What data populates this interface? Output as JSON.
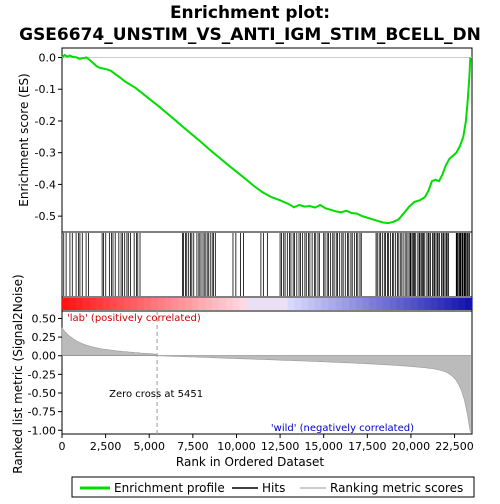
{
  "chart_data": {
    "type": "line",
    "title_line1": "Enrichment plot:",
    "title_line2": "GSE6674_UNSTIM_VS_ANTI_IGM_STIM_BCELL_DN",
    "xlabel": "Rank in Ordered Dataset",
    "ylabel_top": "Enrichment score (ES)",
    "ylabel_bottom": "Ranked list metric (Signal2Noise)",
    "xlim": [
      0,
      23500
    ],
    "x_ticks": [
      0,
      2500,
      5000,
      7500,
      10000,
      12500,
      15000,
      17500,
      20000,
      22500
    ],
    "x_tick_labels": [
      "0",
      "2,500",
      "5,000",
      "7,500",
      "10,000",
      "12,500",
      "15,000",
      "17,500",
      "20,000",
      "22,500"
    ],
    "es_ylim": [
      -0.55,
      0.03
    ],
    "es_ticks": [
      0.0,
      -0.1,
      -0.2,
      -0.3,
      -0.4,
      -0.5
    ],
    "es_tick_labels": [
      "0.0",
      "-0.1",
      "-0.2",
      "-0.3",
      "-0.4",
      "-0.5"
    ],
    "metric_ylim": [
      -1.05,
      0.6
    ],
    "metric_ticks": [
      0.5,
      0.25,
      0.0,
      -0.25,
      -0.5,
      -0.75,
      -1.0
    ],
    "metric_tick_labels": [
      "0.50",
      "0.25",
      "0.00",
      "-0.25",
      "-0.50",
      "-0.75",
      "-1.00"
    ],
    "zero_cross": 5451,
    "zero_cross_label": "Zero cross at 5451",
    "pos_label": "'lab' (positively correlated)",
    "neg_label": "'wild' (negatively correlated)",
    "legend": {
      "placement": "bottom",
      "items": [
        "Enrichment profile",
        "Hits",
        "Ranking metric scores"
      ]
    },
    "series": [
      {
        "name": "Enrichment profile",
        "color": "#00dd00",
        "x": [
          0,
          150,
          300,
          450,
          600,
          800,
          1000,
          1200,
          1400,
          1600,
          1800,
          2000,
          2200,
          2400,
          2600,
          2800,
          3000,
          3300,
          3600,
          3900,
          4200,
          4500,
          5000,
          5500,
          6000,
          6500,
          7000,
          7500,
          8000,
          8500,
          9000,
          9500,
          10000,
          10500,
          11000,
          11500,
          12000,
          12500,
          13000,
          13300,
          13600,
          13900,
          14200,
          14500,
          14800,
          15100,
          15400,
          15700,
          16000,
          16300,
          16600,
          16900,
          17200,
          17500,
          17800,
          18100,
          18400,
          18700,
          19000,
          19300,
          19600,
          19900,
          20200,
          20500,
          20800,
          21000,
          21200,
          21400,
          21600,
          21800,
          22000,
          22200,
          22400,
          22600,
          22800,
          23000,
          23150,
          23250,
          23350,
          23400
        ],
        "y": [
          0.0,
          0.008,
          0.003,
          0.006,
          0.002,
          0.001,
          -0.004,
          -0.002,
          0.0,
          -0.008,
          -0.018,
          -0.028,
          -0.033,
          -0.035,
          -0.038,
          -0.042,
          -0.05,
          -0.062,
          -0.075,
          -0.085,
          -0.095,
          -0.108,
          -0.13,
          -0.152,
          -0.175,
          -0.198,
          -0.222,
          -0.245,
          -0.268,
          -0.292,
          -0.315,
          -0.338,
          -0.36,
          -0.382,
          -0.405,
          -0.425,
          -0.44,
          -0.45,
          -0.462,
          -0.472,
          -0.465,
          -0.47,
          -0.468,
          -0.473,
          -0.465,
          -0.475,
          -0.48,
          -0.485,
          -0.488,
          -0.483,
          -0.49,
          -0.492,
          -0.5,
          -0.505,
          -0.51,
          -0.515,
          -0.52,
          -0.522,
          -0.518,
          -0.51,
          -0.49,
          -0.47,
          -0.455,
          -0.45,
          -0.44,
          -0.42,
          -0.39,
          -0.385,
          -0.39,
          -0.37,
          -0.34,
          -0.32,
          -0.31,
          -0.3,
          -0.28,
          -0.25,
          -0.2,
          -0.14,
          -0.06,
          0.0
        ]
      }
    ]
  }
}
